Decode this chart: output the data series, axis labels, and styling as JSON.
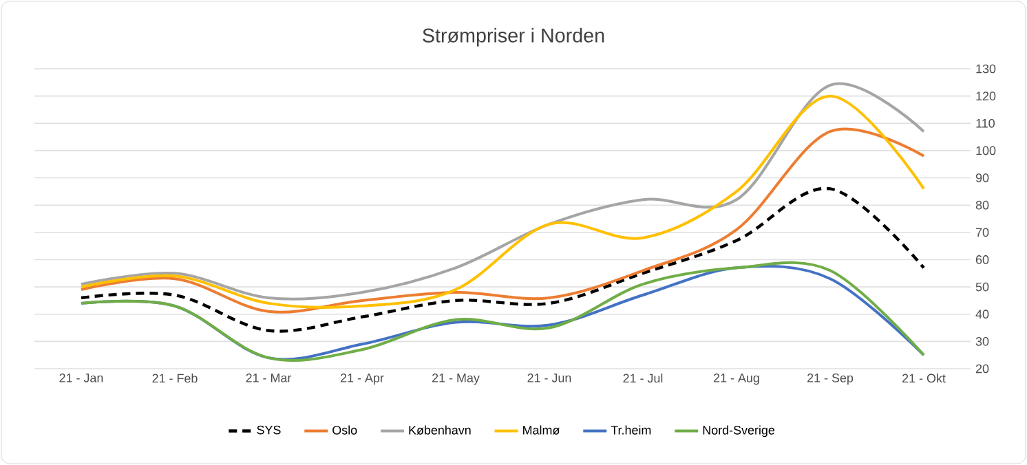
{
  "chart_data": {
    "type": "line",
    "title": "Strømpriser i Norden",
    "categories": [
      "21 - Jan",
      "21 - Feb",
      "21 - Mar",
      "21 - Apr",
      "21 - May",
      "21 - Jun",
      "21 - Jul",
      "21 - Aug",
      "21 - Sep",
      "21 - Okt"
    ],
    "ylim": [
      20,
      130
    ],
    "yticks": [
      20,
      30,
      40,
      50,
      60,
      70,
      80,
      90,
      100,
      110,
      120,
      130
    ],
    "grid": "y",
    "legend": "bottom",
    "marker": "none",
    "series": [
      {
        "name": "SYS",
        "color": "#000000",
        "line_style": "dashed",
        "values": [
          46,
          47,
          34,
          39,
          45,
          44,
          55,
          67,
          86,
          57
        ]
      },
      {
        "name": "Oslo",
        "color": "#ed7d31",
        "values": [
          49,
          53,
          41,
          45,
          48,
          46,
          56,
          71,
          107,
          98
        ]
      },
      {
        "name": "København",
        "color": "#a5a5a5",
        "values": [
          51,
          55,
          46,
          48,
          57,
          73,
          82,
          82,
          124,
          107
        ]
      },
      {
        "name": "Malmø",
        "color": "#ffc000",
        "values": [
          50,
          54,
          44,
          43,
          49,
          73,
          68,
          85,
          120,
          86
        ]
      },
      {
        "name": "Tr.heim",
        "color": "#4472c4",
        "values": [
          44,
          43,
          24,
          29,
          37,
          36,
          47,
          57,
          53,
          25
        ]
      },
      {
        "name": "Nord-Sverige",
        "color": "#70ad47",
        "values": [
          44,
          43,
          24,
          27,
          38,
          35,
          51,
          57,
          56,
          25
        ]
      }
    ]
  }
}
